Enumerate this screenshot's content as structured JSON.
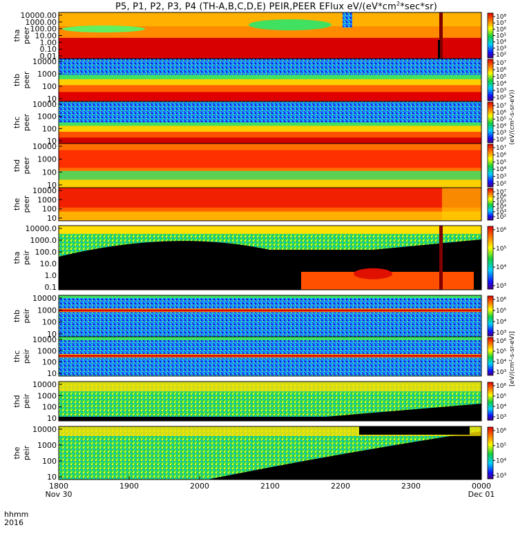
{
  "chart_data": {
    "type": "heatmap",
    "title": "P5, P1, P2, P3, P4 (TH-A,B,C,D,E) PEIR,PEER EFlux eV/(eV*cm",
    "title_sup": "2",
    "title_tail": "*sec*sr)",
    "x_axis": {
      "tick_labels": [
        "1800",
        "1900",
        "2000",
        "2100",
        "2200",
        "2300",
        "0000"
      ],
      "tick_dates": [
        "Nov 30",
        "",
        "",
        "",
        "",
        "",
        "Dec 01"
      ],
      "label_line1": "hhmm",
      "label_line2": "2016",
      "range": [
        "2016-11-30 18:00",
        "2016-12-01 00:00"
      ]
    },
    "colorbar": {
      "colormap": "rainbow (purple-blue-cyan-green-yellow-orange-red)",
      "label_upper": "(eV/(cm²-s-sr-eV))",
      "label_lower": "[eV/(cm²-s-sr-eV)]",
      "tick_sets": {
        "peer_a": [
          "10²",
          "10³",
          "10⁴",
          "10⁵",
          "10⁶",
          "10⁷",
          "10⁸"
        ],
        "peer_b": [
          "10²",
          "10³",
          "10⁴",
          "10⁵",
          "10⁶",
          "10⁷"
        ],
        "peer_c": [
          "10²",
          "10³",
          "10⁴",
          "10⁵",
          "10⁶",
          "10⁷"
        ],
        "peer_d": [
          "10²",
          "10³",
          "10⁴",
          "10⁵",
          "10⁶",
          "10⁷"
        ],
        "peer_e": [
          "10²",
          "10³",
          "10⁴",
          "10⁵",
          "10⁶",
          "10⁷"
        ],
        "peir": [
          "10³",
          "10⁴",
          "10⁵",
          "10⁶"
        ]
      }
    },
    "panels": [
      {
        "probe": "tha",
        "species": "peer",
        "y_ticks": [
          "10000.00",
          "1000.00",
          "100.00",
          "10.00",
          "1.00",
          "0.10",
          "0.01"
        ],
        "colorbar_ticks": "peer_a"
      },
      {
        "probe": "thb",
        "species": "peer",
        "y_ticks": [
          "10000",
          "1000",
          "100",
          "10"
        ],
        "colorbar_ticks": "peer_b"
      },
      {
        "probe": "thc",
        "species": "peer",
        "y_ticks": [
          "10000",
          "1000",
          "100",
          "10"
        ],
        "colorbar_ticks": "peer_c"
      },
      {
        "probe": "thd",
        "species": "peer",
        "y_ticks": [
          "10000",
          "1000",
          "100",
          "10"
        ],
        "colorbar_ticks": "peer_d"
      },
      {
        "probe": "the",
        "species": "peer",
        "y_ticks": [
          "10000",
          "1000",
          "100",
          "10"
        ],
        "colorbar_ticks": "peer_e"
      },
      {
        "probe": "tha",
        "species": "peir",
        "y_ticks": [
          "10000.0",
          "1000.0",
          "100.0",
          "10.0",
          "1.0",
          "0.1"
        ],
        "colorbar_ticks": "peir"
      },
      {
        "probe": "thb",
        "species": "peir",
        "y_ticks": [
          "10000",
          "1000",
          "100",
          "10"
        ],
        "colorbar_ticks": "peir"
      },
      {
        "probe": "thc",
        "species": "peir",
        "y_ticks": [
          "10000",
          "1000",
          "100",
          "10"
        ],
        "colorbar_ticks": "peir"
      },
      {
        "probe": "thd",
        "species": "peir",
        "y_ticks": [
          "10000",
          "1000",
          "100",
          "10"
        ],
        "colorbar_ticks": "peir"
      },
      {
        "probe": "the",
        "species": "peir",
        "y_ticks": [
          "10000",
          "1000",
          "100",
          "10"
        ],
        "colorbar_ticks": "peir"
      }
    ]
  }
}
